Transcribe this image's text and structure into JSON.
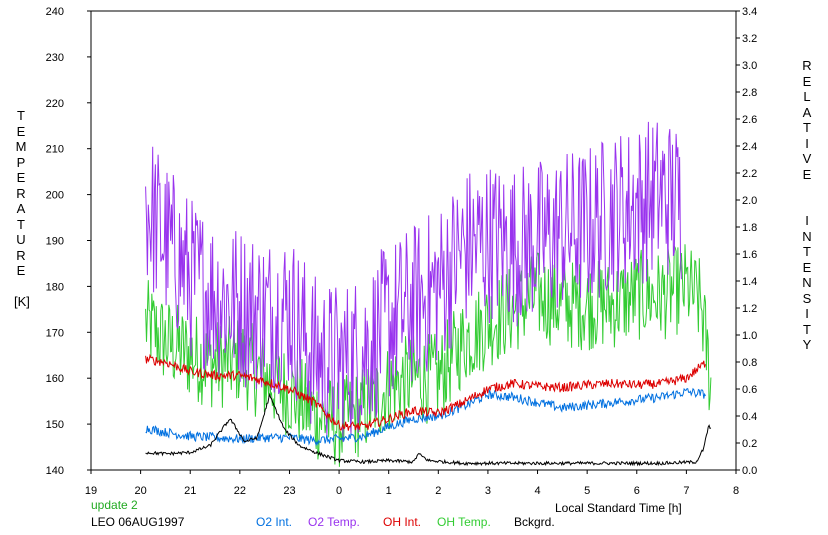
{
  "chart_data": {
    "type": "line",
    "left_axis": {
      "label": "T\nE\nM\nP\nE\nR\nA\nT\nU\nR\nE\n\n[K]",
      "min": 140,
      "max": 240,
      "ticks": [
        "140",
        "150",
        "160",
        "170",
        "180",
        "190",
        "200",
        "210",
        "220",
        "230",
        "240"
      ]
    },
    "right_axis": {
      "label": "R\nE\nL\nA\nT\nI\nV\nE\n\n\nI\nN\nT\nE\nN\nS\nI\nT\nY",
      "min": 0.0,
      "max": 3.4,
      "ticks": [
        "0.0",
        "0.2",
        "0.4",
        "0.6",
        "0.8",
        "1.0",
        "1.2",
        "1.4",
        "1.6",
        "1.8",
        "2.0",
        "2.2",
        "2.4",
        "2.6",
        "2.8",
        "3.0",
        "3.2",
        "3.4"
      ]
    },
    "x_axis": {
      "label": "Local Standard Time [h]",
      "min": 19,
      "max": 32,
      "ticks": [
        "19",
        "20",
        "21",
        "22",
        "23",
        "0",
        "1",
        "2",
        "3",
        "4",
        "5",
        "6",
        "7",
        "8"
      ]
    },
    "series": [
      {
        "name": "O2 Int.",
        "color": "#0070e0",
        "axis": "right",
        "points": [
          [
            20.1,
            0.31
          ],
          [
            20.5,
            0.28
          ],
          [
            21.0,
            0.25
          ],
          [
            21.5,
            0.24
          ],
          [
            22.0,
            0.23
          ],
          [
            22.5,
            0.24
          ],
          [
            23.0,
            0.24
          ],
          [
            23.5,
            0.22
          ],
          [
            24.0,
            0.23
          ],
          [
            24.5,
            0.25
          ],
          [
            25.0,
            0.32
          ],
          [
            25.5,
            0.38
          ],
          [
            26.0,
            0.4
          ],
          [
            26.5,
            0.47
          ],
          [
            27.0,
            0.56
          ],
          [
            27.5,
            0.54
          ],
          [
            28.0,
            0.5
          ],
          [
            28.5,
            0.46
          ],
          [
            29.0,
            0.48
          ],
          [
            29.5,
            0.5
          ],
          [
            30.0,
            0.52
          ],
          [
            30.5,
            0.54
          ],
          [
            31.0,
            0.58
          ],
          [
            31.4,
            0.56
          ]
        ]
      },
      {
        "name": "O2 Temp.",
        "color": "#9933ee",
        "axis": "left",
        "points": [
          [
            20.1,
            198
          ],
          [
            20.5,
            190
          ],
          [
            21.0,
            182
          ],
          [
            21.5,
            178
          ],
          [
            22.0,
            176
          ],
          [
            22.5,
            174
          ],
          [
            23.0,
            175
          ],
          [
            23.5,
            165
          ],
          [
            24.0,
            163
          ],
          [
            24.5,
            166
          ],
          [
            25.0,
            172
          ],
          [
            25.5,
            176
          ],
          [
            26.0,
            180
          ],
          [
            26.5,
            188
          ],
          [
            27.0,
            190
          ],
          [
            27.5,
            189
          ],
          [
            28.0,
            190
          ],
          [
            28.5,
            192
          ],
          [
            29.0,
            193
          ],
          [
            29.5,
            196
          ],
          [
            30.0,
            198
          ],
          [
            30.5,
            200
          ],
          [
            30.9,
            198
          ]
        ]
      },
      {
        "name": "OH Int.",
        "color": "#dd0000",
        "axis": "right",
        "points": [
          [
            20.1,
            0.82
          ],
          [
            20.5,
            0.8
          ],
          [
            21.0,
            0.73
          ],
          [
            21.5,
            0.7
          ],
          [
            22.0,
            0.7
          ],
          [
            22.5,
            0.66
          ],
          [
            23.0,
            0.6
          ],
          [
            23.5,
            0.5
          ],
          [
            24.0,
            0.33
          ],
          [
            24.5,
            0.32
          ],
          [
            25.0,
            0.38
          ],
          [
            25.5,
            0.44
          ],
          [
            26.0,
            0.42
          ],
          [
            26.5,
            0.5
          ],
          [
            27.0,
            0.6
          ],
          [
            27.5,
            0.64
          ],
          [
            28.0,
            0.62
          ],
          [
            28.5,
            0.61
          ],
          [
            29.0,
            0.63
          ],
          [
            29.5,
            0.64
          ],
          [
            30.0,
            0.63
          ],
          [
            30.5,
            0.64
          ],
          [
            31.0,
            0.68
          ],
          [
            31.4,
            0.8
          ]
        ]
      },
      {
        "name": "OH Temp.",
        "color": "#33cc33",
        "axis": "left",
        "points": [
          [
            20.1,
            172
          ],
          [
            20.5,
            168
          ],
          [
            21.0,
            165
          ],
          [
            21.5,
            163
          ],
          [
            22.0,
            164
          ],
          [
            22.5,
            160
          ],
          [
            23.0,
            157
          ],
          [
            23.5,
            152
          ],
          [
            24.0,
            150
          ],
          [
            24.5,
            153
          ],
          [
            25.0,
            158
          ],
          [
            25.5,
            160
          ],
          [
            26.0,
            160
          ],
          [
            26.5,
            168
          ],
          [
            27.0,
            172
          ],
          [
            27.5,
            175
          ],
          [
            28.0,
            178
          ],
          [
            28.5,
            176
          ],
          [
            29.0,
            176
          ],
          [
            29.5,
            176
          ],
          [
            30.0,
            178
          ],
          [
            30.5,
            178
          ],
          [
            31.0,
            180
          ],
          [
            31.3,
            176
          ],
          [
            31.5,
            158
          ]
        ]
      },
      {
        "name": "Bckgrd.",
        "color": "#000000",
        "axis": "right",
        "points": [
          [
            20.1,
            0.13
          ],
          [
            20.5,
            0.12
          ],
          [
            21.0,
            0.13
          ],
          [
            21.4,
            0.18
          ],
          [
            21.8,
            0.38
          ],
          [
            22.1,
            0.21
          ],
          [
            22.35,
            0.24
          ],
          [
            22.6,
            0.55
          ],
          [
            22.9,
            0.3
          ],
          [
            23.2,
            0.18
          ],
          [
            23.6,
            0.12
          ],
          [
            24.0,
            0.07
          ],
          [
            24.5,
            0.06
          ],
          [
            25.0,
            0.07
          ],
          [
            25.5,
            0.06
          ],
          [
            25.6,
            0.12
          ],
          [
            25.8,
            0.07
          ],
          [
            26.5,
            0.05
          ],
          [
            27.5,
            0.05
          ],
          [
            28.5,
            0.05
          ],
          [
            29.5,
            0.05
          ],
          [
            30.5,
            0.05
          ],
          [
            31.2,
            0.06
          ],
          [
            31.35,
            0.16
          ],
          [
            31.45,
            0.33
          ],
          [
            31.5,
            0.3
          ]
        ]
      }
    ]
  },
  "footer": {
    "update": "update 2",
    "station": "LEO 06AUG1997",
    "legend": [
      "O2 Int.",
      "O2 Temp.",
      "OH Int.",
      "OH Temp.",
      "Bckgrd."
    ]
  },
  "colors": {
    "o2_int": "#0070e0",
    "o2_temp": "#9933ee",
    "oh_int": "#dd0000",
    "oh_temp": "#33cc33",
    "bckgrd": "#000000",
    "update": "#22aa22"
  }
}
